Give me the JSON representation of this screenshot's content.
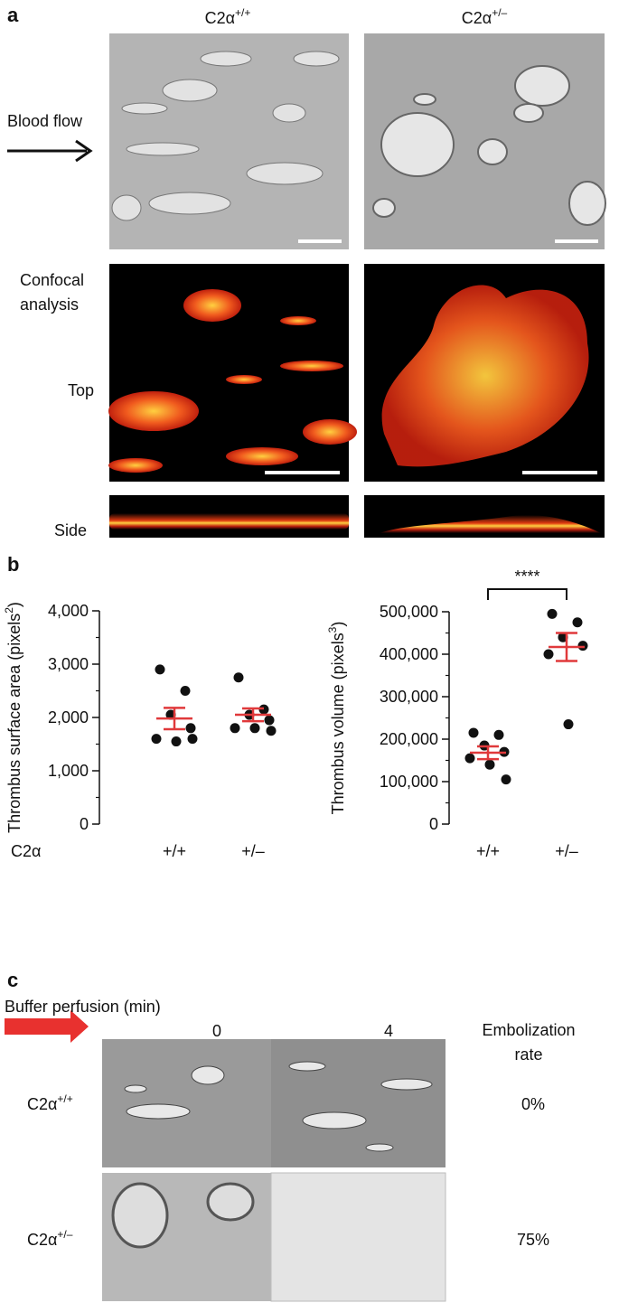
{
  "panel_labels": [
    "a",
    "b",
    "c"
  ],
  "panel_a": {
    "columns": [
      {
        "base": "C2α",
        "sup": "+/+"
      },
      {
        "base": "C2α",
        "sup": "+/–"
      }
    ],
    "blood_flow": "Blood flow",
    "confocal": [
      "Confocal",
      "analysis"
    ],
    "top": "Top",
    "side": "Side"
  },
  "chart_data": [
    {
      "type": "scatter",
      "ylabel": {
        "text": "Thrombus surface area (pixels",
        "sup": "2",
        "tail": ")"
      },
      "xlabel": "C2α",
      "categories": [
        "+/+",
        "+/–"
      ],
      "values": [
        [
          2900,
          2500,
          2050,
          1800,
          1600,
          1550,
          1600
        ],
        [
          2750,
          2150,
          2050,
          1950,
          1800,
          1800,
          1750
        ]
      ],
      "means": [
        1980,
        2050
      ],
      "sems": [
        200,
        120
      ],
      "point_color": "#111111",
      "mean_color": "#e0393b",
      "ylim": [
        0,
        4000
      ],
      "yticks": [
        0,
        {
          "value": 1000,
          "label": "1,000"
        },
        {
          "value": 2000,
          "label": "2,000"
        },
        {
          "value": 3000,
          "label": "3,000"
        },
        {
          "value": 4000,
          "label": "4,000"
        }
      ],
      "yminorticks": [
        500,
        1500,
        2500,
        3500
      ]
    },
    {
      "type": "scatter",
      "ylabel": {
        "text": "Thrombus volume (pixels",
        "sup": "3",
        "tail": ")"
      },
      "categories": [
        "+/+",
        "+/–"
      ],
      "values": [
        [
          215000,
          210000,
          185000,
          170000,
          155000,
          140000,
          105000
        ],
        [
          495000,
          475000,
          440000,
          420000,
          400000,
          235000
        ]
      ],
      "means": [
        168000,
        417000
      ],
      "sems": [
        15000,
        33000
      ],
      "point_color": "#111111",
      "mean_color": "#e0393b",
      "annotation": "****",
      "ylim": [
        0,
        500000
      ],
      "yticks": [
        0,
        {
          "value": 100000,
          "label": "100,000"
        },
        {
          "value": 200000,
          "label": "200,000"
        },
        {
          "value": 300000,
          "label": "300,000"
        },
        {
          "value": 400000,
          "label": "400,000"
        },
        {
          "value": 500000,
          "label": "500,000"
        }
      ],
      "yminorticks": [
        50000,
        150000,
        250000,
        350000,
        450000
      ]
    }
  ],
  "panel_c": {
    "buffer": "Buffer perfusion (min)",
    "times": [
      "0",
      "4"
    ],
    "rate_header": [
      "Embolization",
      "rate"
    ],
    "rows": [
      {
        "label": {
          "base": "C2α",
          "sup": "+/+"
        },
        "rate": "0%"
      },
      {
        "label": {
          "base": "C2α",
          "sup": "+/–"
        },
        "rate": "75%"
      }
    ]
  }
}
